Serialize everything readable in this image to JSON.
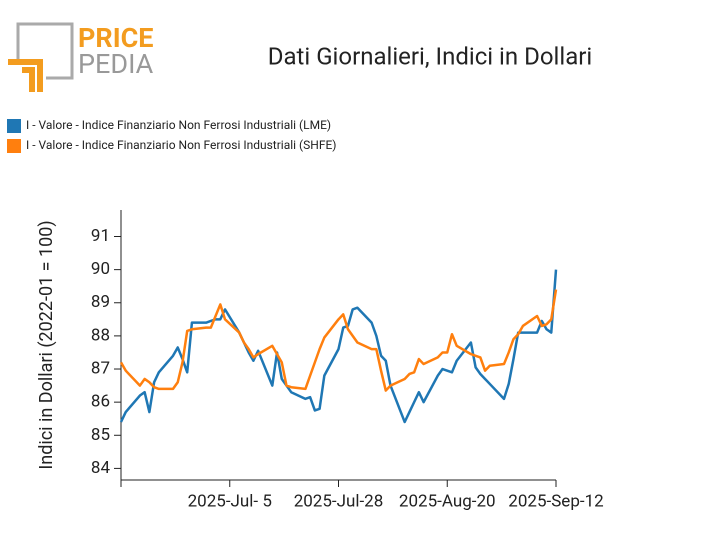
{
  "logo": {
    "top": "PRICE",
    "bottom": "PEDIA"
  },
  "chart_data": {
    "type": "line",
    "title": "Dati Giornalieri, Indici in Dollari",
    "y_label": "Indici in Dollari (2022-01 = 100)",
    "x": [
      "2025-06-12",
      "2025-06-13",
      "2025-06-16",
      "2025-06-17",
      "2025-06-18",
      "2025-06-19",
      "2025-06-20",
      "2025-06-23",
      "2025-06-24",
      "2025-06-25",
      "2025-06-26",
      "2025-06-27",
      "2025-06-30",
      "2025-07-01",
      "2025-07-02",
      "2025-07-03",
      "2025-07-04",
      "2025-07-07",
      "2025-07-08",
      "2025-07-09",
      "2025-07-10",
      "2025-07-11",
      "2025-07-14",
      "2025-07-15",
      "2025-07-16",
      "2025-07-17",
      "2025-07-18",
      "2025-07-21",
      "2025-07-22",
      "2025-07-23",
      "2025-07-24",
      "2025-07-25",
      "2025-07-28",
      "2025-07-29",
      "2025-07-30",
      "2025-07-31",
      "2025-08-01",
      "2025-08-04",
      "2025-08-05",
      "2025-08-06",
      "2025-08-07",
      "2025-08-08",
      "2025-08-11",
      "2025-08-12",
      "2025-08-13",
      "2025-08-14",
      "2025-08-15",
      "2025-08-18",
      "2025-08-19",
      "2025-08-20",
      "2025-08-21",
      "2025-08-22",
      "2025-08-25",
      "2025-08-26",
      "2025-08-27",
      "2025-08-28",
      "2025-08-29",
      "2025-09-01",
      "2025-09-02",
      "2025-09-03",
      "2025-09-04",
      "2025-09-05",
      "2025-09-08",
      "2025-09-09",
      "2025-09-10",
      "2025-09-11",
      "2025-09-12"
    ],
    "series": [
      {
        "name": "I - Valore - Indice Finanziario Non Ferrosi Industriali (LME)",
        "color": "#1f77b4",
        "values": [
          85.4,
          85.7,
          86.2,
          86.3,
          85.7,
          86.6,
          86.9,
          87.4,
          87.65,
          87.3,
          86.9,
          88.4,
          88.4,
          88.45,
          88.5,
          88.5,
          88.8,
          88.1,
          87.8,
          87.5,
          87.25,
          87.55,
          86.5,
          87.5,
          86.7,
          86.5,
          86.3,
          86.1,
          86.15,
          85.75,
          85.8,
          86.8,
          87.6,
          88.25,
          88.3,
          88.8,
          88.85,
          88.4,
          88.0,
          87.4,
          87.25,
          86.5,
          85.4,
          85.7,
          86.0,
          86.3,
          86.0,
          86.8,
          87.0,
          86.95,
          86.9,
          87.25,
          87.8,
          87.05,
          86.85,
          86.7,
          86.55,
          86.1,
          86.55,
          87.3,
          88.1,
          88.1,
          88.1,
          88.45,
          88.2,
          88.1,
          90.0
        ]
      },
      {
        "name": "I - Valore - Indice Finanziario Non Ferrosi Industriali (SHFE)",
        "color": "#ff7f0e",
        "values": [
          87.2,
          86.95,
          86.5,
          86.7,
          86.6,
          86.45,
          86.4,
          86.4,
          86.6,
          87.2,
          88.15,
          88.2,
          88.25,
          88.25,
          88.6,
          88.95,
          88.5,
          88.1,
          87.8,
          87.6,
          87.35,
          87.45,
          87.7,
          87.45,
          87.2,
          86.5,
          86.45,
          86.4,
          86.8,
          87.2,
          87.6,
          87.95,
          88.5,
          88.65,
          88.2,
          88.0,
          87.8,
          87.6,
          87.6,
          86.95,
          86.35,
          86.5,
          86.7,
          86.85,
          86.9,
          87.3,
          87.15,
          87.35,
          87.5,
          87.5,
          88.05,
          87.7,
          87.45,
          87.4,
          87.35,
          86.95,
          87.1,
          87.15,
          87.5,
          87.9,
          88.05,
          88.3,
          88.6,
          88.3,
          88.35,
          88.5,
          89.4
        ]
      }
    ],
    "xlim": [
      "2025-06-12",
      "2025-09-12"
    ],
    "xticks": [
      {
        "value": "2025-07-05",
        "label": "2025-Jul- 5"
      },
      {
        "value": "2025-07-28",
        "label": "2025-Jul-28"
      },
      {
        "value": "2025-08-20",
        "label": "2025-Aug-20"
      },
      {
        "value": "2025-09-12",
        "label": "2025-Sep-12"
      }
    ],
    "ylim": [
      83.65,
      91.8
    ],
    "yticks": [
      84,
      85,
      86,
      87,
      88,
      89,
      90,
      91
    ],
    "grid": false,
    "legend": "top-left"
  }
}
